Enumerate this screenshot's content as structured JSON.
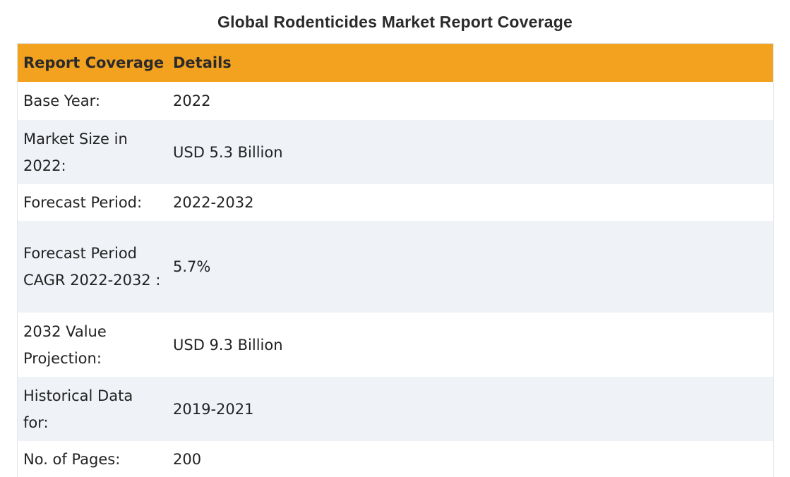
{
  "title": "Global Rodenticides Market Report Coverage",
  "table": {
    "headers": [
      "Report Coverage",
      "Details"
    ],
    "rows": [
      {
        "label": "Base Year:",
        "value": "2022"
      },
      {
        "label": "Market Size in 2022:",
        "value": "USD 5.3 Billion"
      },
      {
        "label": "Forecast Period:",
        "value": "2022-2032"
      },
      {
        "label": "Forecast Period CAGR 2022-2032 :",
        "value": "5.7%"
      },
      {
        "label": "2032 Value Projection:",
        "value": "USD 9.3 Billion"
      },
      {
        "label": "Historical Data for:",
        "value": "2019-2021"
      },
      {
        "label": "No. of Pages:",
        "value": "200"
      }
    ]
  },
  "colors": {
    "header_bg": "#f3a21f",
    "row_alt_bg": "#eff2f7",
    "row_bg": "#ffffff"
  }
}
